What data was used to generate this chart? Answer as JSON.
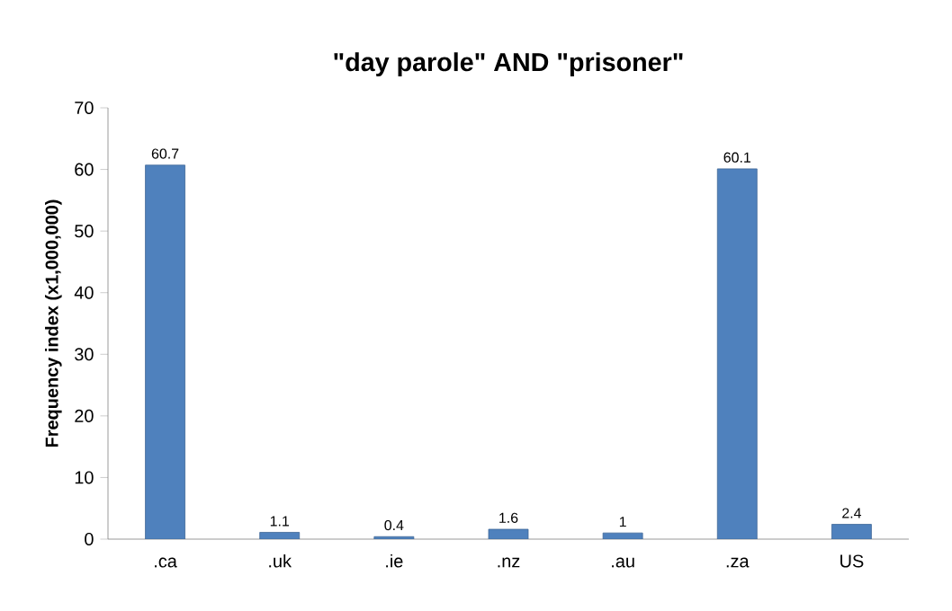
{
  "chart_data": {
    "type": "bar",
    "title": "\"day parole\" AND \"prisoner\"",
    "ylabel": "Frequency index (x1,000,000)",
    "categories": [
      ".ca",
      ".uk",
      ".ie",
      ".nz",
      ".au",
      ".za",
      "US"
    ],
    "values": [
      60.7,
      1.1,
      0.4,
      1.6,
      1,
      60.1,
      2.4
    ],
    "color": "#4f81bd",
    "ylim": [
      0,
      70
    ],
    "yticks": [
      0,
      10,
      20,
      30,
      40,
      50,
      60,
      70
    ],
    "data_labels": true
  }
}
